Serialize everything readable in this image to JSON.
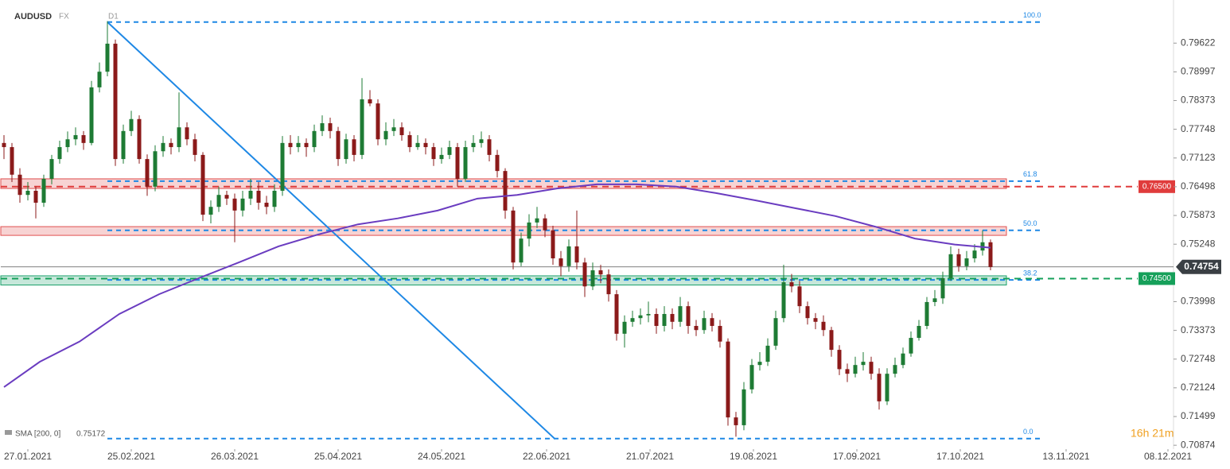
{
  "chart_data": {
    "type": "candlestick",
    "title": "AUDUSD",
    "market": "FX",
    "timeframe": "D1",
    "countdown": "16h 21m",
    "colors": {
      "up": "#1e7b34",
      "down": "#8b1a1a",
      "sma": "#6a3cc0",
      "trendline": "#1e88e5",
      "fib": "#1e88e5"
    },
    "xlim": [
      -0.5,
      147
    ],
    "xticks": [
      {
        "value": 3,
        "label": "27.01.2021"
      },
      {
        "value": 16,
        "label": "25.02.2021"
      },
      {
        "value": 29,
        "label": "26.03.2021"
      },
      {
        "value": 42,
        "label": "25.04.2021"
      },
      {
        "value": 55,
        "label": "24.05.2021"
      },
      {
        "value": 68.2,
        "label": "22.06.2021"
      },
      {
        "value": 81.2,
        "label": "21.07.2021"
      },
      {
        "value": 94.2,
        "label": "19.08.2021"
      },
      {
        "value": 107.2,
        "label": "17.09.2021"
      },
      {
        "value": 120.2,
        "label": "17.10.2021"
      },
      {
        "value": 133.5,
        "label": "13.11.2021"
      },
      {
        "value": 146.3,
        "label": "08.12.2021"
      }
    ],
    "ylim": [
      0.7079,
      0.8056
    ],
    "yticks": [
      0.79622,
      0.78997,
      0.78373,
      0.77748,
      0.77123,
      0.76498,
      0.75873,
      0.75248,
      0.73998,
      0.73373,
      0.72748,
      0.72124,
      0.71499,
      0.70874
    ],
    "open": [
      0.7745,
      0.7736,
      0.7676,
      0.7632,
      0.7641,
      0.7615,
      0.7667,
      0.771,
      0.7736,
      0.7753,
      0.7762,
      0.7745,
      0.7866,
      0.79,
      0.7961,
      0.771,
      0.7771,
      0.7797,
      0.771,
      0.765,
      0.7727,
      0.7745,
      0.7736,
      0.7779,
      0.7753,
      0.7719,
      0.7589,
      0.7606,
      0.7632,
      0.7624,
      0.7598,
      0.7624,
      0.7641,
      0.7615,
      0.7606,
      0.7641,
      0.7745,
      0.7736,
      0.7745,
      0.7736,
      0.7771,
      0.7788,
      0.7771,
      0.771,
      0.7753,
      0.7719,
      0.784,
      0.7831,
      0.7753,
      0.7771,
      0.7779,
      0.7762,
      0.7736,
      0.7745,
      0.7736,
      0.771,
      0.7719,
      0.7736,
      0.7667,
      0.7736,
      0.7745,
      0.7753,
      0.7719,
      0.7684,
      0.7598,
      0.7485,
      0.7537,
      0.7572,
      0.7581,
      0.7555,
      0.7494,
      0.7477,
      0.752,
      0.7485,
      0.7433,
      0.7468,
      0.7459,
      0.7416,
      0.733,
      0.7356,
      0.7364,
      0.737,
      0.7373,
      0.7347,
      0.7373,
      0.7356,
      0.739,
      0.7347,
      0.7338,
      0.7364,
      0.7347,
      0.7313,
      0.7148,
      0.7131,
      0.7209,
      0.7262,
      0.7269,
      0.7304,
      0.7364,
      0.7442,
      0.7433,
      0.739,
      0.7364,
      0.7356,
      0.7338,
      0.7295,
      0.7253,
      0.7243,
      0.7262,
      0.7269,
      0.7243,
      0.7183,
      0.7243,
      0.7262,
      0.7287,
      0.7321,
      0.7347,
      0.7399,
      0.7407,
      0.7451,
      0.7503,
      0.7477,
      0.7494,
      0.7511,
      0.7529
    ],
    "high": [
      0.7762,
      0.7745,
      0.769,
      0.766,
      0.765,
      0.7676,
      0.7719,
      0.775,
      0.777,
      0.7779,
      0.7771,
      0.788,
      0.792,
      0.801,
      0.797,
      0.7785,
      0.7815,
      0.7805,
      0.772,
      0.774,
      0.776,
      0.7755,
      0.7855,
      0.779,
      0.7765,
      0.7725,
      0.762,
      0.765,
      0.7641,
      0.7635,
      0.7641,
      0.7667,
      0.766,
      0.763,
      0.7655,
      0.776,
      0.7762,
      0.776,
      0.7755,
      0.7785,
      0.7805,
      0.78,
      0.778,
      0.7765,
      0.7762,
      0.7886,
      0.786,
      0.784,
      0.779,
      0.7797,
      0.779,
      0.777,
      0.7762,
      0.7755,
      0.7745,
      0.7735,
      0.775,
      0.7745,
      0.775,
      0.7762,
      0.777,
      0.7762,
      0.773,
      0.769,
      0.7606,
      0.755,
      0.759,
      0.7606,
      0.759,
      0.7565,
      0.751,
      0.7535,
      0.7598,
      0.7495,
      0.7485,
      0.748,
      0.747,
      0.7425,
      0.737,
      0.738,
      0.7385,
      0.74,
      0.7385,
      0.739,
      0.7385,
      0.741,
      0.74,
      0.736,
      0.738,
      0.7375,
      0.736,
      0.732,
      0.716,
      0.7225,
      0.7275,
      0.729,
      0.732,
      0.738,
      0.748,
      0.746,
      0.7445,
      0.74,
      0.7375,
      0.737,
      0.7345,
      0.7305,
      0.7265,
      0.728,
      0.729,
      0.728,
      0.7255,
      0.7255,
      0.7278,
      0.73,
      0.7335,
      0.736,
      0.741,
      0.7425,
      0.7465,
      0.752,
      0.7515,
      0.751,
      0.7525,
      0.7555,
      0.7535
    ],
    "low": [
      0.771,
      0.766,
      0.7615,
      0.762,
      0.7581,
      0.7606,
      0.7655,
      0.77,
      0.7725,
      0.774,
      0.773,
      0.774,
      0.7855,
      0.789,
      0.7695,
      0.77,
      0.776,
      0.77,
      0.763,
      0.764,
      0.7715,
      0.772,
      0.7725,
      0.774,
      0.7705,
      0.7575,
      0.757,
      0.7595,
      0.761,
      0.7529,
      0.7585,
      0.761,
      0.76,
      0.759,
      0.7595,
      0.763,
      0.772,
      0.7725,
      0.7715,
      0.7725,
      0.776,
      0.7755,
      0.7695,
      0.77,
      0.7705,
      0.771,
      0.7825,
      0.774,
      0.774,
      0.776,
      0.775,
      0.7725,
      0.773,
      0.772,
      0.7695,
      0.77,
      0.771,
      0.765,
      0.766,
      0.7725,
      0.7735,
      0.7705,
      0.767,
      0.758,
      0.747,
      0.7477,
      0.752,
      0.756,
      0.754,
      0.748,
      0.7455,
      0.7465,
      0.747,
      0.741,
      0.7425,
      0.744,
      0.74,
      0.7315,
      0.73,
      0.7345,
      0.735,
      0.7355,
      0.733,
      0.7335,
      0.734,
      0.7345,
      0.733,
      0.7325,
      0.733,
      0.7335,
      0.73,
      0.713,
      0.7106,
      0.712,
      0.72,
      0.725,
      0.726,
      0.7295,
      0.7355,
      0.742,
      0.7375,
      0.735,
      0.734,
      0.7325,
      0.728,
      0.724,
      0.7225,
      0.7235,
      0.725,
      0.723,
      0.7165,
      0.7175,
      0.7235,
      0.7255,
      0.728,
      0.7315,
      0.734,
      0.739,
      0.7395,
      0.7445,
      0.7465,
      0.7468,
      0.7485,
      0.75,
      0.7468
    ],
    "close": [
      0.7736,
      0.7676,
      0.7632,
      0.7641,
      0.7615,
      0.7667,
      0.771,
      0.7736,
      0.7753,
      0.7762,
      0.7745,
      0.7866,
      0.79,
      0.7961,
      0.771,
      0.7771,
      0.7797,
      0.771,
      0.765,
      0.7727,
      0.7745,
      0.7736,
      0.7779,
      0.7753,
      0.7719,
      0.7589,
      0.7606,
      0.7632,
      0.7624,
      0.7598,
      0.7624,
      0.7641,
      0.7615,
      0.7606,
      0.7641,
      0.7745,
      0.7736,
      0.7745,
      0.7736,
      0.7771,
      0.7788,
      0.7771,
      0.771,
      0.7753,
      0.7719,
      0.784,
      0.7831,
      0.7753,
      0.7771,
      0.7779,
      0.7762,
      0.7736,
      0.7745,
      0.7736,
      0.771,
      0.7719,
      0.7736,
      0.7667,
      0.7736,
      0.7745,
      0.7753,
      0.7719,
      0.7684,
      0.7598,
      0.7485,
      0.7537,
      0.7572,
      0.7581,
      0.7555,
      0.7494,
      0.7477,
      0.752,
      0.7485,
      0.7433,
      0.7468,
      0.7459,
      0.7416,
      0.733,
      0.7356,
      0.7364,
      0.737,
      0.7373,
      0.7347,
      0.7373,
      0.7356,
      0.739,
      0.7347,
      0.7338,
      0.7364,
      0.7347,
      0.7313,
      0.7148,
      0.7131,
      0.7209,
      0.7262,
      0.7269,
      0.7304,
      0.7364,
      0.7442,
      0.7433,
      0.739,
      0.7364,
      0.7356,
      0.7338,
      0.7295,
      0.7253,
      0.7243,
      0.7262,
      0.7269,
      0.7243,
      0.7183,
      0.7243,
      0.7262,
      0.7287,
      0.7321,
      0.7347,
      0.7399,
      0.7407,
      0.7451,
      0.7503,
      0.7477,
      0.7494,
      0.7511,
      0.7529,
      0.74754
    ],
    "sma": {
      "name": "SMA [200, 0]",
      "last_value": 0.75172,
      "x": [
        0,
        4.5,
        9.5,
        14.5,
        19.5,
        24.5,
        29.5,
        34.5,
        39.5,
        44.5,
        49.5,
        54.5,
        59.5,
        64.5,
        69.5,
        74.5,
        79.5,
        84.5,
        89.5,
        94.5,
        99.5,
        104.5,
        109.5,
        114.5,
        119.5,
        124
      ],
      "values": [
        0.7214,
        0.7269,
        0.7313,
        0.7373,
        0.7416,
        0.7451,
        0.7485,
        0.752,
        0.7546,
        0.7568,
        0.7581,
        0.7598,
        0.7624,
        0.7632,
        0.7646,
        0.7655,
        0.7655,
        0.765,
        0.7636,
        0.762,
        0.7603,
        0.7586,
        0.7563,
        0.7537,
        0.7524,
        0.75172
      ]
    },
    "trendline": {
      "x": [
        13,
        69.2
      ],
      "values": [
        0.8008,
        0.7102
      ]
    },
    "fibonacci": [
      {
        "label": "100.0",
        "price": 0.8008
      },
      {
        "label": "61.8",
        "price": 0.7662
      },
      {
        "label": "50.0",
        "price": 0.7555
      },
      {
        "label": "38.2",
        "price": 0.7447
      },
      {
        "label": "0.0",
        "price": 0.7102
      }
    ],
    "zones": [
      {
        "top": 0.7667,
        "bottom": 0.7646,
        "color": "#e05050"
      },
      {
        "top": 0.7563,
        "bottom": 0.7544,
        "color": "#e05050"
      },
      {
        "top": 0.7456,
        "bottom": 0.7436,
        "color": "#1aa06a"
      }
    ],
    "levels": [
      {
        "value": 0.765,
        "label": "0.76500",
        "color": "#e03c3c"
      },
      {
        "value": 0.745,
        "label": "0.74500",
        "color": "#16a05a"
      }
    ]
  }
}
